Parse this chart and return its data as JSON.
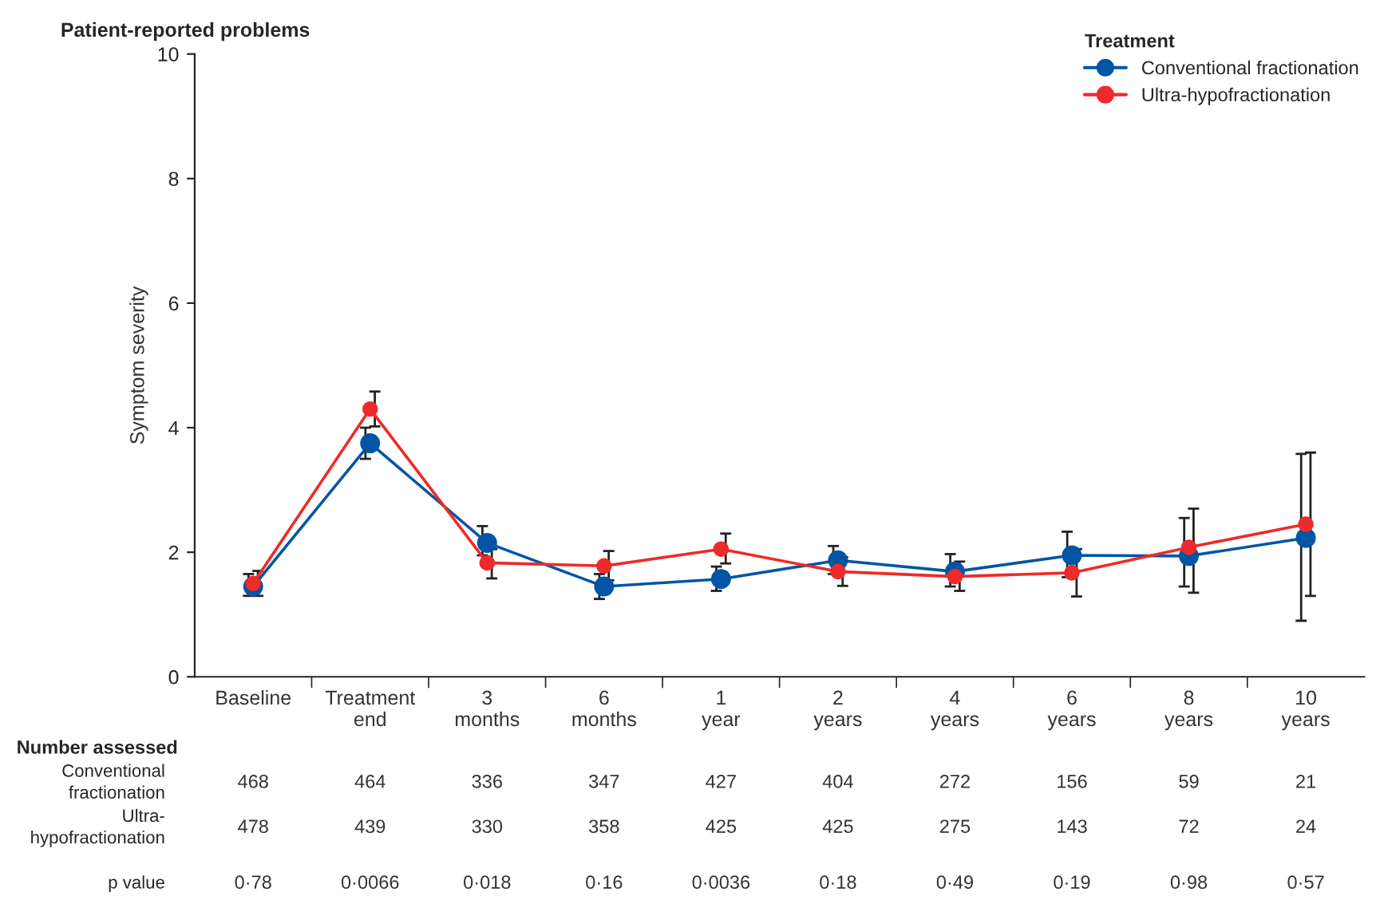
{
  "chart_data": {
    "type": "line",
    "title": "Patient-reported problems",
    "ylabel": "Symptom severity",
    "legend_title": "Treatment",
    "legend": "top right",
    "marker": "circle",
    "line_style": "solid",
    "grid": false,
    "categories": [
      "Baseline",
      "Treatment\nend",
      "3\nmonths",
      "6\nmonths",
      "1\nyear",
      "2\nyears",
      "4\nyears",
      "6\nyears",
      "8\nyears",
      "10\nyears"
    ],
    "ylim": [
      0,
      10
    ],
    "yticks": [
      0,
      2,
      4,
      6,
      8,
      10
    ],
    "series": [
      {
        "name": "Conventional fractionation",
        "color": "#0055a5",
        "values": [
          1.45,
          3.75,
          2.15,
          1.45,
          1.57,
          1.87,
          1.69,
          1.95,
          1.94,
          2.23
        ],
        "errors": [
          [
            1.3,
            1.65
          ],
          [
            3.5,
            4.0
          ],
          [
            1.95,
            2.42
          ],
          [
            1.25,
            1.65
          ],
          [
            1.38,
            1.77
          ],
          [
            1.65,
            2.1
          ],
          [
            1.45,
            1.97
          ],
          [
            1.6,
            2.33
          ],
          [
            1.45,
            2.55
          ],
          [
            0.9,
            3.58
          ]
        ]
      },
      {
        "name": "Ultra-hypofractionation",
        "color": "#ee2a2a",
        "values": [
          1.5,
          4.3,
          1.83,
          1.78,
          2.05,
          1.69,
          1.61,
          1.67,
          2.08,
          2.45
        ],
        "errors": [
          [
            1.3,
            1.7
          ],
          [
            4.02,
            4.58
          ],
          [
            1.58,
            2.05
          ],
          [
            1.55,
            2.02
          ],
          [
            1.82,
            2.3
          ],
          [
            1.46,
            1.92
          ],
          [
            1.38,
            1.85
          ],
          [
            1.29,
            2.05
          ],
          [
            1.35,
            2.7
          ],
          [
            1.3,
            3.6
          ]
        ]
      }
    ],
    "annotations": [
      "Number assessed",
      "Conventional\nfractionation",
      "468",
      "464",
      "336",
      "347",
      "427",
      "404",
      "272",
      "156",
      "59",
      "21",
      "Ultra-\nhypofractionation",
      "478",
      "439",
      "330",
      "358",
      "425",
      "425",
      "275",
      "143",
      "72",
      "24",
      "p value",
      "0·78",
      "0·0066",
      "0·018",
      "0·16",
      "0·0036",
      "0·18",
      "0·49",
      "0·19",
      "0·98",
      "0·57"
    ]
  }
}
